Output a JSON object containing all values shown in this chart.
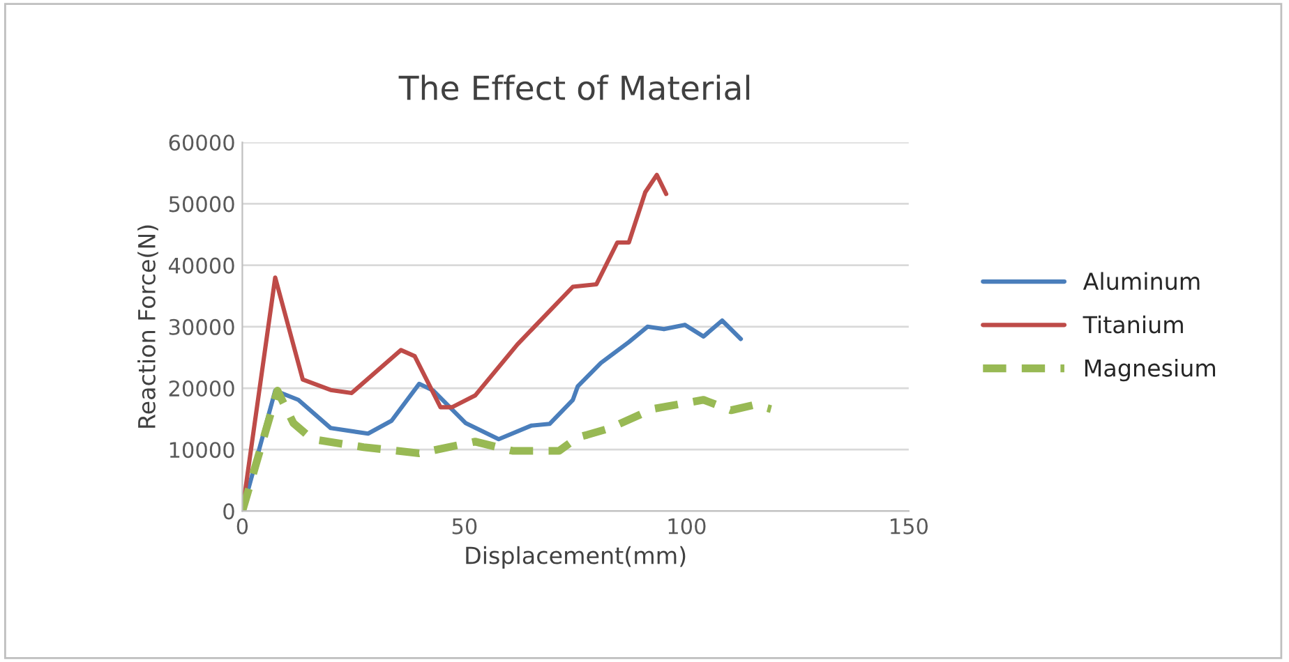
{
  "chart_data": {
    "type": "line",
    "title": "The Effect of Material",
    "xlabel": "Displacement(mm)",
    "ylabel": "Reaction Force(N)",
    "xlim": [
      0,
      150
    ],
    "xticks": [
      0,
      50,
      100,
      150
    ],
    "ylim": [
      0,
      60000
    ],
    "yticks": [
      0,
      10000,
      20000,
      30000,
      40000,
      50000,
      60000
    ],
    "grid": "y",
    "legend": "right",
    "line_style": "solid",
    "series": [
      {
        "name": "Aluminum",
        "color": "#4a7ebb",
        "x": [
          0,
          7.4,
          12.6,
          19.9,
          28.3,
          33.6,
          39.8,
          43,
          50.3,
          57.7,
          65,
          69.2,
          74.4,
          75.5,
          80.7,
          87,
          91.2,
          94.9,
          99.6,
          103.8,
          108,
          112.2
        ],
        "values": [
          0,
          19600,
          18100,
          13500,
          12600,
          14700,
          20700,
          19600,
          14300,
          11700,
          13900,
          14200,
          18100,
          20300,
          24100,
          27500,
          30000,
          29600,
          30300,
          28400,
          31000,
          28000
        ]
      },
      {
        "name": "Titanium",
        "color": "#be4b48",
        "x": [
          0,
          7.4,
          13.6,
          19.9,
          24.6,
          35.7,
          38.8,
          44.6,
          47.2,
          52.4,
          61.9,
          74.4,
          79.7,
          84.4,
          87,
          90.7,
          93.3,
          95.4
        ],
        "values": [
          0,
          38000,
          21400,
          19700,
          19200,
          26200,
          25200,
          16900,
          16900,
          18800,
          27100,
          36500,
          36900,
          43700,
          43700,
          51900,
          54700,
          51600
        ]
      },
      {
        "name": "Magnesium",
        "color": "#98b954",
        "line_style": "dashed",
        "x": [
          0,
          7.9,
          11.5,
          15.7,
          27.3,
          39.8,
          52.4,
          60.8,
          71.3,
          75.5,
          77.6,
          82.8,
          92.3,
          103.8,
          110,
          115.3,
          119
        ],
        "values": [
          0,
          19600,
          14300,
          11700,
          10400,
          9400,
          11300,
          9800,
          9800,
          12000,
          12400,
          13500,
          16600,
          18100,
          16400,
          17300,
          16600
        ]
      }
    ]
  }
}
